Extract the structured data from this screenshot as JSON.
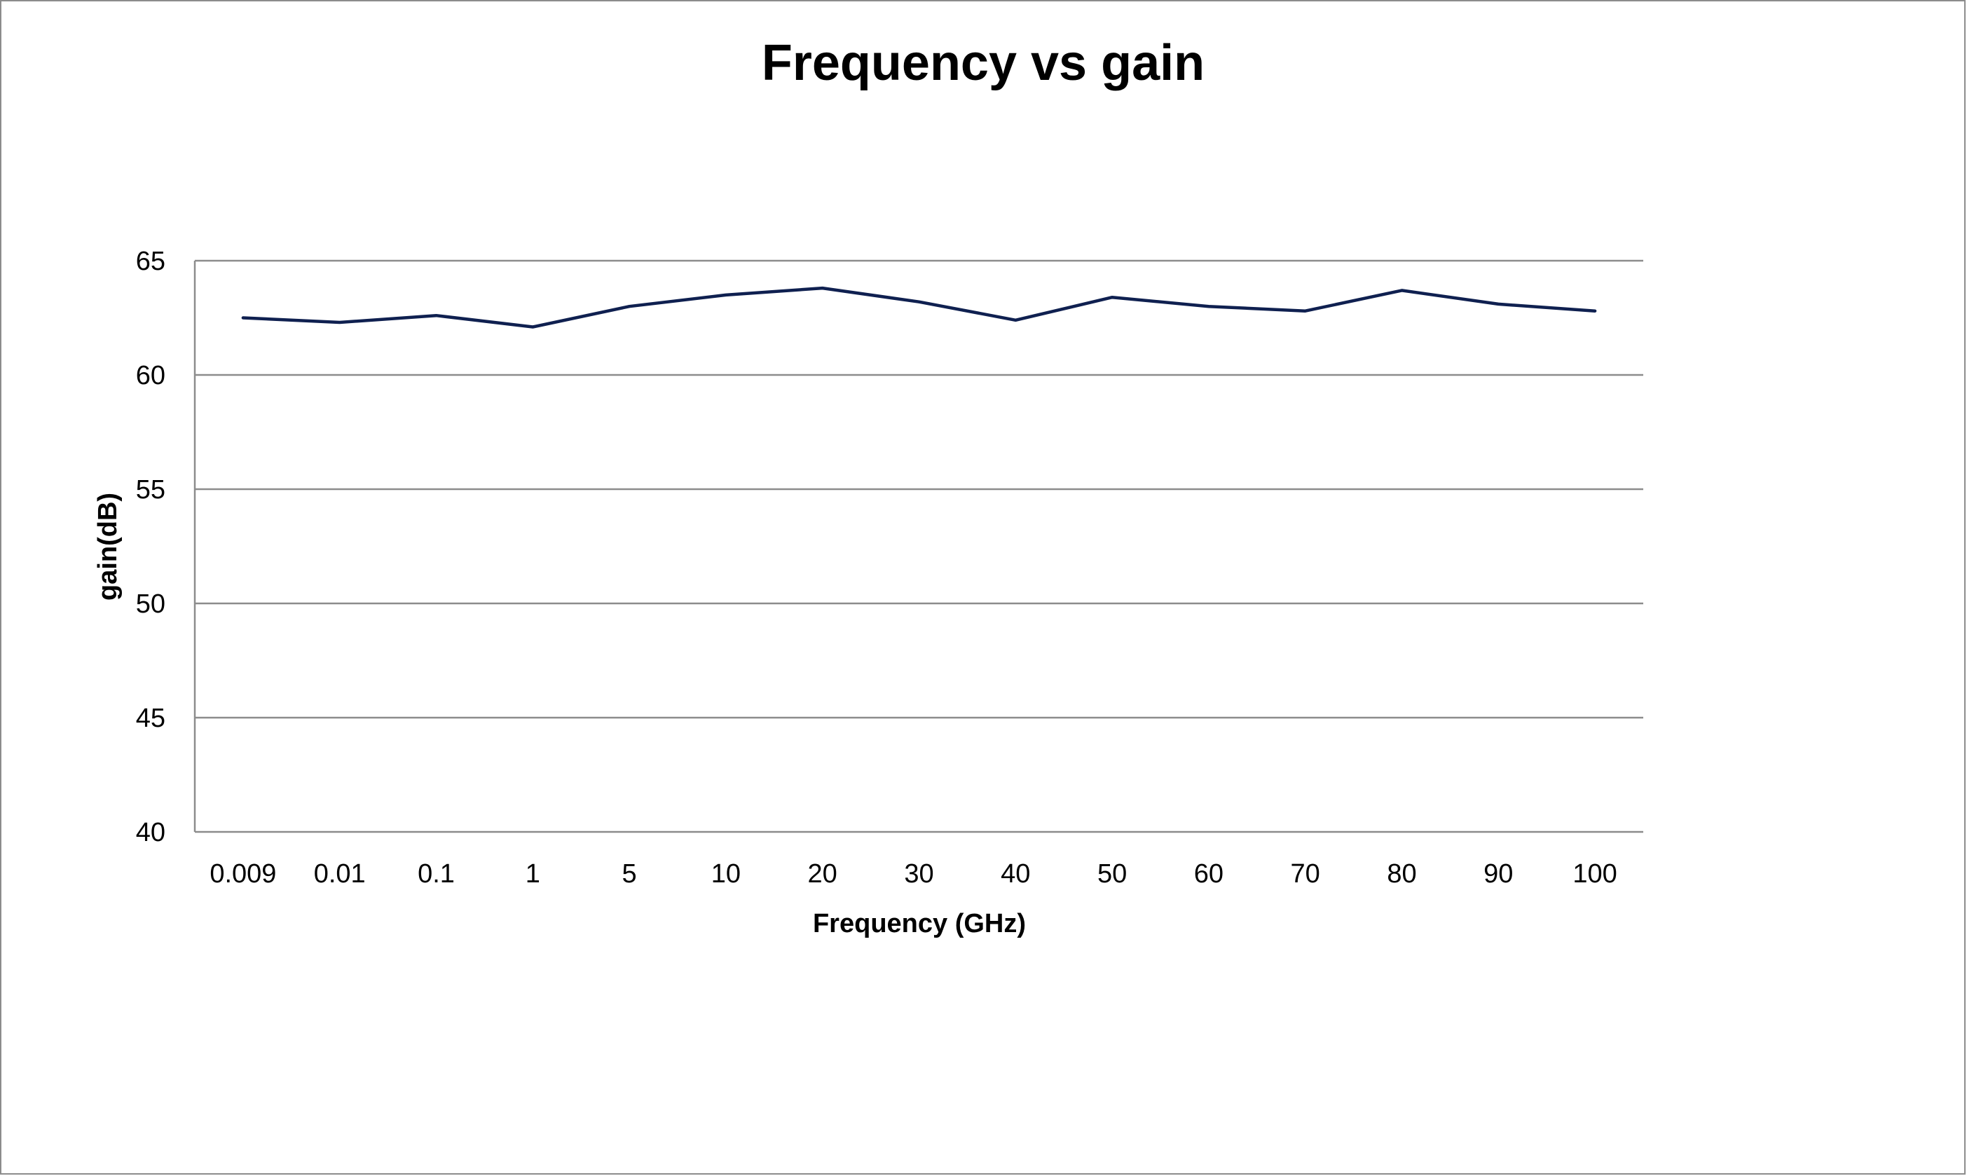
{
  "chart_data": {
    "type": "line",
    "title": "Frequency vs gain",
    "xlabel": "Frequency (GHz)",
    "ylabel": "gain(dB)",
    "categories": [
      "0.009",
      "0.01",
      "0.1",
      "1",
      "5",
      "10",
      "20",
      "30",
      "40",
      "50",
      "60",
      "70",
      "80",
      "90",
      "100"
    ],
    "series": [
      {
        "values": [
          62.5,
          62.3,
          62.6,
          62.1,
          63.0,
          63.5,
          63.8,
          63.2,
          62.4,
          63.4,
          63.0,
          62.8,
          63.7,
          63.1,
          62.8
        ],
        "color": "#0f2050"
      }
    ],
    "ylim": [
      40,
      65
    ],
    "yticks": [
      40,
      45,
      50,
      55,
      60,
      65
    ],
    "grid": true,
    "legend": "none"
  }
}
